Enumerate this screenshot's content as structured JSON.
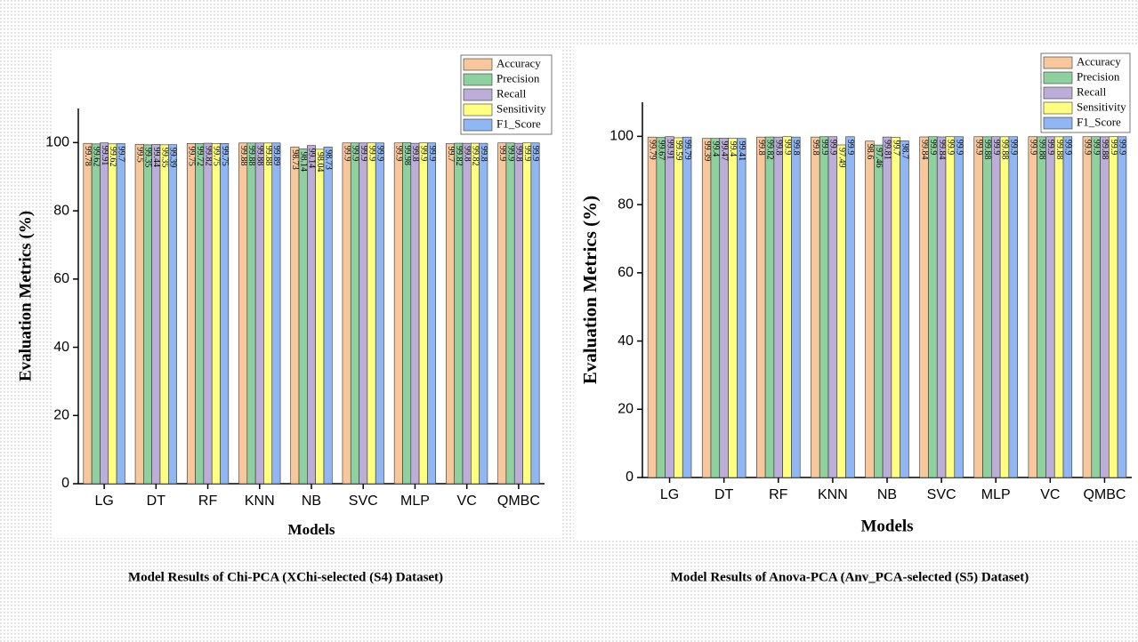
{
  "chart_data": [
    {
      "type": "bar",
      "caption": "Model Results of Chi-PCA (XChi-selected (S4) Dataset)",
      "xlabel": "Models",
      "ylabel": "Evaluation Metrics (%)",
      "categories": [
        "LG",
        "DT",
        "RF",
        "KNN",
        "NB",
        "SVC",
        "MLP",
        "VC",
        "QMBC"
      ],
      "ylim": [
        0,
        110
      ],
      "yticks": [
        0,
        20,
        40,
        60,
        80,
        100
      ],
      "legend": "top-right",
      "series": [
        {
          "name": "Accuracy",
          "color": "#f8c89c",
          "values": [
            99.78,
            99.5,
            99.75,
            99.88,
            98.73,
            99.9,
            99.9,
            99.7,
            99.9
          ]
        },
        {
          "name": "Precision",
          "color": "#8fd19e",
          "values": [
            99.62,
            99.35,
            99.72,
            99.88,
            98.14,
            99.9,
            99.98,
            99.82,
            99.9
          ]
        },
        {
          "name": "Recall",
          "color": "#bcaed8",
          "values": [
            99.91,
            99.44,
            99.82,
            99.88,
            99.14,
            99.9,
            99.8,
            99.8,
            99.8
          ]
        },
        {
          "name": "Sensitivity",
          "color": "#ffff80",
          "values": [
            99.62,
            99.35,
            99.75,
            99.88,
            98.04,
            99.9,
            99.9,
            99.82,
            99.9
          ]
        },
        {
          "name": "F1_Score",
          "color": "#90b6f4",
          "values": [
            99.7,
            99.39,
            99.75,
            99.89,
            98.73,
            99.9,
            99.9,
            99.8,
            99.9
          ]
        }
      ]
    },
    {
      "type": "bar",
      "caption": "Model Results of Anova-PCA (Anv_PCA-selected (S5) Dataset)",
      "xlabel": "Models",
      "ylabel": "Evaluation Metrics (%)",
      "categories": [
        "LG",
        "DT",
        "RF",
        "KNN",
        "NB",
        "SVC",
        "MLP",
        "VC",
        "QMBC"
      ],
      "ylim": [
        0,
        110
      ],
      "yticks": [
        0,
        20,
        40,
        60,
        80,
        100
      ],
      "legend": "top-right",
      "series": [
        {
          "name": "Accuracy",
          "color": "#f8c89c",
          "values": [
            99.79,
            99.39,
            99.8,
            99.8,
            98.6,
            99.84,
            99.9,
            99.9,
            99.9
          ]
        },
        {
          "name": "Precision",
          "color": "#8fd19e",
          "values": [
            99.67,
            99.4,
            99.82,
            99.9,
            97.46,
            99.9,
            99.88,
            99.88,
            99.9
          ]
        },
        {
          "name": "Recall",
          "color": "#bcaed8",
          "values": [
            99.91,
            99.47,
            99.8,
            99.9,
            99.81,
            99.84,
            99.9,
            99.9,
            99.88
          ]
        },
        {
          "name": "Sensitivity",
          "color": "#ffff80",
          "values": [
            99.59,
            99.4,
            99.9,
            97.49,
            99.7,
            99.9,
            99.88,
            99.88,
            99.9
          ]
        },
        {
          "name": "F1_Score",
          "color": "#90b6f4",
          "values": [
            99.79,
            99.41,
            99.8,
            99.9,
            98.7,
            99.9,
            99.9,
            99.9,
            99.9
          ]
        }
      ]
    }
  ]
}
